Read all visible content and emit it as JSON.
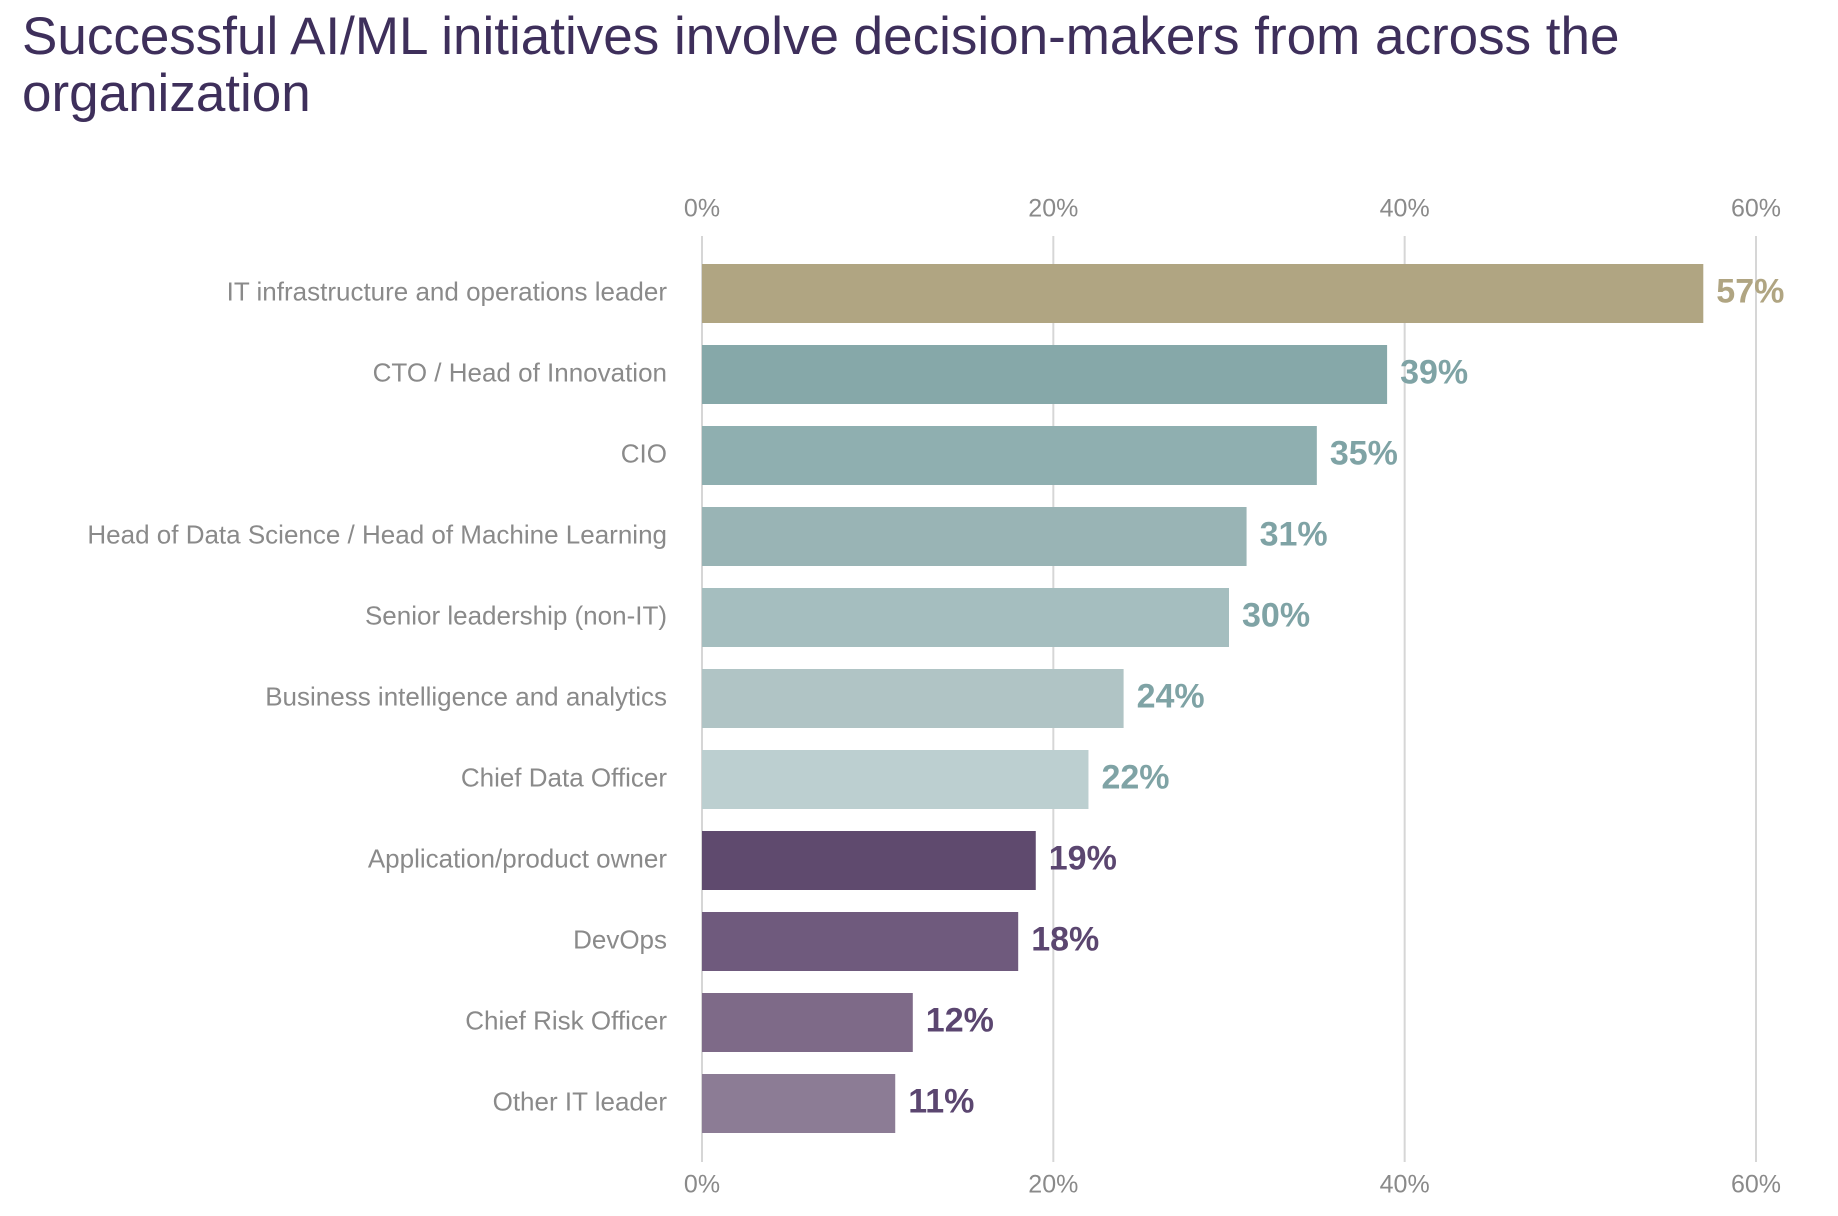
{
  "chart_data": {
    "type": "hbar",
    "title": "Successful AI/ML initiatives involve decision-makers from across the organization",
    "categories": [
      "IT infrastructure and operations leader",
      "CTO / Head of Innovation",
      "CIO",
      "Head of Data Science / Head of Machine Learning",
      "Senior leadership (non-IT)",
      "Business intelligence and analytics",
      "Chief Data Officer",
      "Application/product owner",
      "DevOps",
      "Chief Risk Officer",
      "Other IT leader"
    ],
    "values": [
      57,
      39,
      35,
      31,
      30,
      24,
      22,
      19,
      18,
      12,
      11
    ],
    "value_labels": [
      "57%",
      "39%",
      "35%",
      "31%",
      "30%",
      "24%",
      "22%",
      "19%",
      "18%",
      "12%",
      "11%"
    ],
    "colors": [
      "#b0a582",
      "#86a8a9",
      "#8fafb0",
      "#99b4b5",
      "#a5bebf",
      "#b0c4c5",
      "#bccfd0",
      "#5f4a6e",
      "#6f5a7d",
      "#7e6a88",
      "#8c7c95"
    ],
    "value_label_colors": [
      "#b0a582",
      "#7fa3a5",
      "#7fa3a5",
      "#7fa3a5",
      "#7fa3a5",
      "#7fa3a5",
      "#7fa3a5",
      "#5b4670",
      "#5b4670",
      "#5b4670",
      "#5b4670"
    ],
    "xlim": [
      0,
      60
    ],
    "xticks": [
      {
        "value": 0,
        "label": "0%"
      },
      {
        "value": 20,
        "label": "20%"
      },
      {
        "value": 40,
        "label": "40%"
      },
      {
        "value": 60,
        "label": "60%"
      }
    ],
    "grid": true
  }
}
